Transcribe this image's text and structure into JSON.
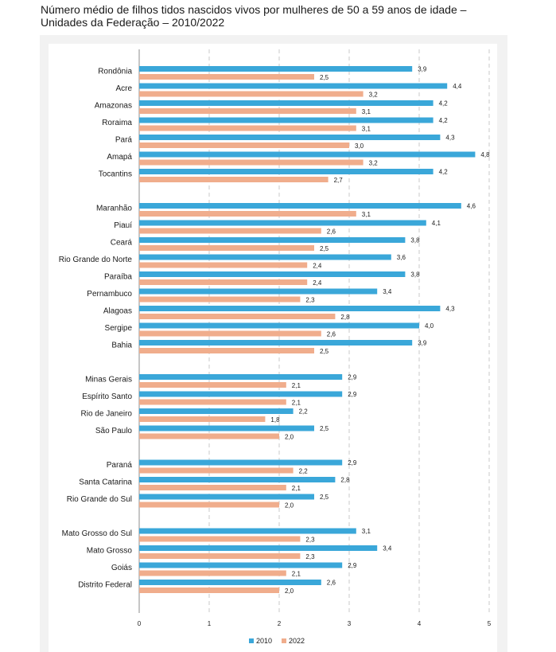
{
  "title": {
    "line1": "Número médio de filhos tidos nascidos vivos por mulheres de 50 a 59 anos de idade –",
    "line2": "Unidades da Federação – 2010/2022"
  },
  "colors": {
    "s2010": "#3aa7d9",
    "s2022": "#f0ad8c",
    "grid": "#c8c8c8",
    "axis": "#8c8c8c"
  },
  "chart_data": {
    "type": "bar",
    "orientation": "horizontal",
    "xlim": [
      0,
      5
    ],
    "x_ticks": [
      "0",
      "1",
      "2",
      "3",
      "4",
      "5"
    ],
    "grid": true,
    "legend_position": "bottom",
    "groups": [
      [
        "Rondônia",
        "Acre",
        "Amazonas",
        "Roraima",
        "Pará",
        "Amapá",
        "Tocantins"
      ],
      [
        "Maranhão",
        "Piauí",
        "Ceará",
        "Rio Grande do Norte",
        "Paraíba",
        "Pernambuco",
        "Alagoas",
        "Sergipe",
        "Bahia"
      ],
      [
        "Minas Gerais",
        "Espírito Santo",
        "Rio de Janeiro",
        "São Paulo"
      ],
      [
        "Paraná",
        "Santa Catarina",
        "Rio Grande do Sul"
      ],
      [
        "Mato Grosso do Sul",
        "Mato Grosso",
        "Goiás",
        "Distrito Federal"
      ]
    ],
    "series": [
      {
        "name": "2010",
        "values": [
          3.9,
          4.4,
          4.2,
          4.2,
          4.3,
          4.8,
          4.2,
          4.6,
          4.1,
          3.8,
          3.6,
          3.8,
          3.4,
          4.3,
          4.0,
          3.9,
          2.9,
          2.9,
          2.2,
          2.5,
          2.9,
          2.8,
          2.5,
          3.1,
          3.4,
          2.9,
          2.6
        ]
      },
      {
        "name": "2022",
        "values": [
          2.5,
          3.2,
          3.1,
          3.1,
          3.0,
          3.2,
          2.7,
          3.1,
          2.6,
          2.5,
          2.4,
          2.4,
          2.3,
          2.8,
          2.6,
          2.5,
          2.1,
          2.1,
          1.8,
          2.0,
          2.2,
          2.1,
          2.0,
          2.3,
          2.3,
          2.1,
          2.0
        ]
      }
    ]
  }
}
